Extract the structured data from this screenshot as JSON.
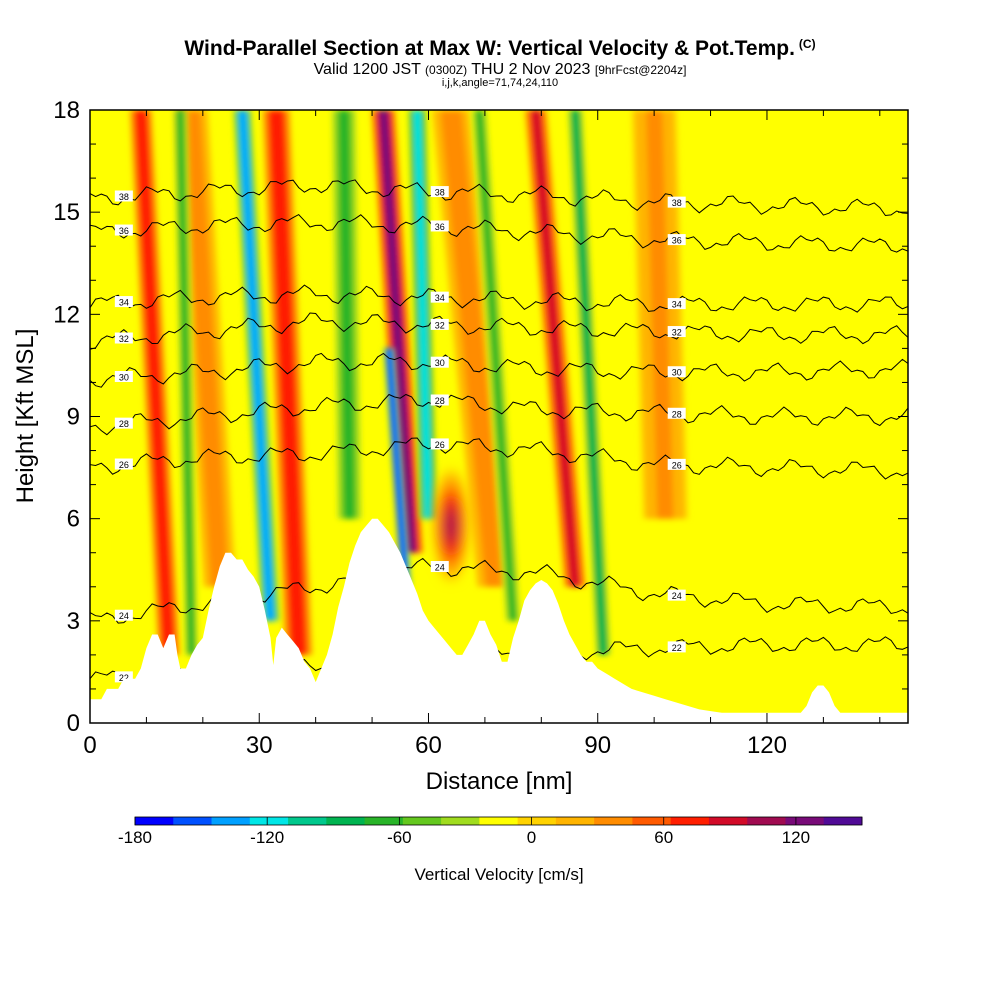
{
  "header": {
    "title": "Wind-Parallel Section at Max W: Vertical Velocity & Pot.Temp.",
    "copyright": "(C)",
    "valid_prefix": "Valid 1200 JST",
    "valid_utc": "(0300Z)",
    "valid_date": "THU 2 Nov 2023",
    "forecast_info": "[9hrFcst@2204z]",
    "grid_info": "i,j,k,angle=71,74,24,110"
  },
  "chart_data": {
    "type": "heatmap",
    "xlabel": "Distance [nm]",
    "ylabel": "Height [Kft MSL]",
    "xlim": [
      0,
      145
    ],
    "ylim": [
      0,
      18
    ],
    "x_ticks": [
      0,
      30,
      60,
      90,
      120
    ],
    "y_ticks": [
      0,
      3,
      6,
      9,
      12,
      15,
      18
    ],
    "colorbar": {
      "label": "Vertical Velocity [cm/s]",
      "min": -180,
      "max": 150,
      "tick_values": [
        -180,
        -120,
        -60,
        0,
        60,
        120
      ],
      "tick_labels": [
        "-180",
        "-120",
        "-60",
        "0",
        "60",
        "120"
      ],
      "colors": [
        "#0000ff",
        "#0050ff",
        "#00a0ff",
        "#00e6e6",
        "#00c88c",
        "#00b450",
        "#28b428",
        "#64c81e",
        "#a0dc1e",
        "#ffff00",
        "#ffd200",
        "#ffb400",
        "#ff8c00",
        "#ff5a00",
        "#ff1e00",
        "#d20a28",
        "#a00a50",
        "#780a78",
        "#500a96"
      ]
    },
    "terrain": [
      [
        0,
        0.7
      ],
      [
        2,
        0.7
      ],
      [
        3,
        1.0
      ],
      [
        5,
        1.0
      ],
      [
        6,
        1.3
      ],
      [
        8,
        1.3
      ],
      [
        9,
        1.6
      ],
      [
        10,
        2.2
      ],
      [
        11,
        2.6
      ],
      [
        12,
        2.6
      ],
      [
        13,
        2.2
      ],
      [
        14,
        2.6
      ],
      [
        15,
        2.6
      ],
      [
        15.5,
        2.0
      ],
      [
        16,
        1.6
      ],
      [
        17,
        1.6
      ],
      [
        18,
        2.0
      ],
      [
        19,
        2.3
      ],
      [
        20,
        2.5
      ],
      [
        21,
        3.3
      ],
      [
        22,
        4.0
      ],
      [
        23,
        4.6
      ],
      [
        24,
        5.0
      ],
      [
        25,
        5.0
      ],
      [
        26,
        4.8
      ],
      [
        27,
        4.8
      ],
      [
        28,
        4.5
      ],
      [
        29,
        4.3
      ],
      [
        30,
        4.0
      ],
      [
        31,
        3.3
      ],
      [
        32,
        2.5
      ],
      [
        32.5,
        1.7
      ],
      [
        33,
        2.5
      ],
      [
        34,
        2.8
      ],
      [
        35,
        2.6
      ],
      [
        36,
        2.4
      ],
      [
        37,
        2.2
      ],
      [
        38,
        1.8
      ],
      [
        39,
        1.6
      ],
      [
        40,
        1.2
      ],
      [
        41,
        1.6
      ],
      [
        42,
        2.0
      ],
      [
        43,
        2.6
      ],
      [
        44,
        3.4
      ],
      [
        45,
        4.0
      ],
      [
        46,
        4.7
      ],
      [
        47,
        5.2
      ],
      [
        48,
        5.6
      ],
      [
        49,
        5.8
      ],
      [
        50,
        6.0
      ],
      [
        51,
        6.0
      ],
      [
        52,
        5.8
      ],
      [
        53,
        5.6
      ],
      [
        54,
        5.3
      ],
      [
        55,
        5.0
      ],
      [
        56,
        4.6
      ],
      [
        57,
        4.2
      ],
      [
        58,
        3.8
      ],
      [
        59,
        3.3
      ],
      [
        60,
        3.0
      ],
      [
        61,
        2.8
      ],
      [
        62,
        2.6
      ],
      [
        63,
        2.4
      ],
      [
        64,
        2.2
      ],
      [
        65,
        2.0
      ],
      [
        66,
        2.0
      ],
      [
        67,
        2.3
      ],
      [
        68,
        2.6
      ],
      [
        69,
        3.0
      ],
      [
        70,
        3.0
      ],
      [
        71,
        2.6
      ],
      [
        72,
        2.3
      ],
      [
        73,
        1.8
      ],
      [
        74,
        1.8
      ],
      [
        75,
        2.5
      ],
      [
        76,
        3.0
      ],
      [
        77,
        3.6
      ],
      [
        78,
        3.9
      ],
      [
        79,
        4.1
      ],
      [
        80,
        4.2
      ],
      [
        81,
        4.1
      ],
      [
        82,
        3.9
      ],
      [
        83,
        3.5
      ],
      [
        84,
        3.0
      ],
      [
        85,
        2.6
      ],
      [
        86,
        2.3
      ],
      [
        87,
        2.0
      ],
      [
        88,
        1.8
      ],
      [
        89,
        1.8
      ],
      [
        90,
        1.6
      ],
      [
        91,
        1.5
      ],
      [
        92,
        1.4
      ],
      [
        93,
        1.3
      ],
      [
        94,
        1.2
      ],
      [
        95,
        1.1
      ],
      [
        96,
        1.0
      ],
      [
        98,
        0.9
      ],
      [
        100,
        0.8
      ],
      [
        102,
        0.7
      ],
      [
        104,
        0.6
      ],
      [
        106,
        0.5
      ],
      [
        108,
        0.4
      ],
      [
        110,
        0.35
      ],
      [
        112,
        0.3
      ],
      [
        115,
        0.3
      ],
      [
        120,
        0.3
      ],
      [
        125,
        0.3
      ],
      [
        126,
        0.3
      ],
      [
        127,
        0.5
      ],
      [
        128,
        0.9
      ],
      [
        129,
        1.1
      ],
      [
        130,
        1.1
      ],
      [
        131,
        0.9
      ],
      [
        132,
        0.5
      ],
      [
        133,
        0.3
      ],
      [
        140,
        0.3
      ],
      [
        145,
        0.3
      ]
    ],
    "updraft_bands": [
      {
        "x_bottom": 14,
        "x_top": 9,
        "y_bottom": 2,
        "y_top": 18,
        "w": 80,
        "width": 2.0
      },
      {
        "x_bottom": 23,
        "x_top": 18,
        "y_bottom": 4,
        "y_top": 18,
        "w": 40,
        "width": 3.0
      },
      {
        "x_bottom": 37,
        "x_top": 33,
        "y_bottom": 2,
        "y_top": 18,
        "w": 80,
        "width": 2.5
      },
      {
        "x_bottom": 57,
        "x_top": 52,
        "y_bottom": 5,
        "y_top": 18,
        "w": 120,
        "width": 2.2
      },
      {
        "x_bottom": 72,
        "x_top": 64,
        "y_bottom": 4,
        "y_top": 18,
        "w": 40,
        "width": 3.5
      },
      {
        "x_bottom": 86,
        "x_top": 79,
        "y_bottom": 4,
        "y_top": 18,
        "w": 90,
        "width": 2.0
      },
      {
        "x_bottom": 102,
        "x_top": 100,
        "y_bottom": 6,
        "y_top": 18,
        "w": 30,
        "width": 4.0
      }
    ],
    "downdraft_bands": [
      {
        "x_bottom": 18,
        "x_top": 16,
        "y_bottom": 2,
        "y_top": 18,
        "w": -70,
        "width": 1.3
      },
      {
        "x_bottom": 32,
        "x_top": 27,
        "y_bottom": 3,
        "y_top": 18,
        "w": -140,
        "width": 1.6
      },
      {
        "x_bottom": 46,
        "x_top": 45,
        "y_bottom": 6,
        "y_top": 18,
        "w": -60,
        "width": 2.5
      },
      {
        "x_bottom": 56,
        "x_top": 53,
        "y_bottom": 4,
        "y_top": 11,
        "w": -170,
        "width": 1.0
      },
      {
        "x_bottom": 60,
        "x_top": 58,
        "y_bottom": 6,
        "y_top": 18,
        "w": -120,
        "width": 1.6
      },
      {
        "x_bottom": 75,
        "x_top": 69,
        "y_bottom": 3,
        "y_top": 18,
        "w": -60,
        "width": 1.5
      },
      {
        "x_bottom": 91,
        "x_top": 86,
        "y_bottom": 2,
        "y_top": 18,
        "w": -80,
        "width": 1.5
      }
    ],
    "updraft_blobs": [
      {
        "x": 64,
        "y": 5.8,
        "w": 110,
        "rx": 3.0,
        "ry": 1.6
      }
    ],
    "theta_contours": [
      {
        "label": "22",
        "points": [
          [
            0,
            1.3
          ],
          [
            30,
            1.5
          ],
          [
            60,
            1.9
          ],
          [
            85,
            2.1
          ],
          [
            100,
            2.2
          ],
          [
            120,
            2.3
          ],
          [
            145,
            2.3
          ]
        ]
      },
      {
        "label": "24",
        "points": [
          [
            0,
            3.0
          ],
          [
            20,
            3.5
          ],
          [
            40,
            4.0
          ],
          [
            60,
            4.6
          ],
          [
            80,
            4.4
          ],
          [
            100,
            3.8
          ],
          [
            120,
            3.5
          ],
          [
            145,
            3.4
          ]
        ]
      },
      {
        "label": "26",
        "points": [
          [
            0,
            7.5
          ],
          [
            20,
            7.8
          ],
          [
            40,
            7.9
          ],
          [
            60,
            8.2
          ],
          [
            80,
            8.0
          ],
          [
            100,
            7.6
          ],
          [
            120,
            7.5
          ],
          [
            145,
            7.4
          ]
        ]
      },
      {
        "label": "28",
        "points": [
          [
            0,
            8.7
          ],
          [
            20,
            9.0
          ],
          [
            40,
            9.3
          ],
          [
            60,
            9.5
          ],
          [
            80,
            9.2
          ],
          [
            100,
            9.1
          ],
          [
            120,
            9.0
          ],
          [
            145,
            9.0
          ]
        ]
      },
      {
        "label": "30",
        "points": [
          [
            0,
            10.1
          ],
          [
            20,
            10.3
          ],
          [
            40,
            10.6
          ],
          [
            60,
            10.6
          ],
          [
            80,
            10.4
          ],
          [
            100,
            10.3
          ],
          [
            120,
            10.3
          ],
          [
            145,
            10.4
          ]
        ]
      },
      {
        "label": "32",
        "points": [
          [
            0,
            11.2
          ],
          [
            20,
            11.5
          ],
          [
            40,
            11.8
          ],
          [
            60,
            11.7
          ],
          [
            80,
            11.6
          ],
          [
            100,
            11.5
          ],
          [
            120,
            11.4
          ],
          [
            145,
            11.4
          ]
        ]
      },
      {
        "label": "34",
        "points": [
          [
            0,
            12.3
          ],
          [
            20,
            12.5
          ],
          [
            40,
            12.6
          ],
          [
            60,
            12.5
          ],
          [
            80,
            12.4
          ],
          [
            100,
            12.3
          ],
          [
            120,
            12.3
          ],
          [
            145,
            12.3
          ]
        ]
      },
      {
        "label": "36",
        "points": [
          [
            0,
            14.4
          ],
          [
            20,
            14.6
          ],
          [
            40,
            14.7
          ],
          [
            60,
            14.6
          ],
          [
            80,
            14.4
          ],
          [
            100,
            14.2
          ],
          [
            120,
            14.1
          ],
          [
            145,
            14.0
          ]
        ]
      },
      {
        "label": "38",
        "points": [
          [
            0,
            15.4
          ],
          [
            20,
            15.6
          ],
          [
            40,
            15.8
          ],
          [
            60,
            15.6
          ],
          [
            80,
            15.5
          ],
          [
            100,
            15.3
          ],
          [
            120,
            15.2
          ],
          [
            145,
            15.1
          ]
        ]
      }
    ]
  }
}
